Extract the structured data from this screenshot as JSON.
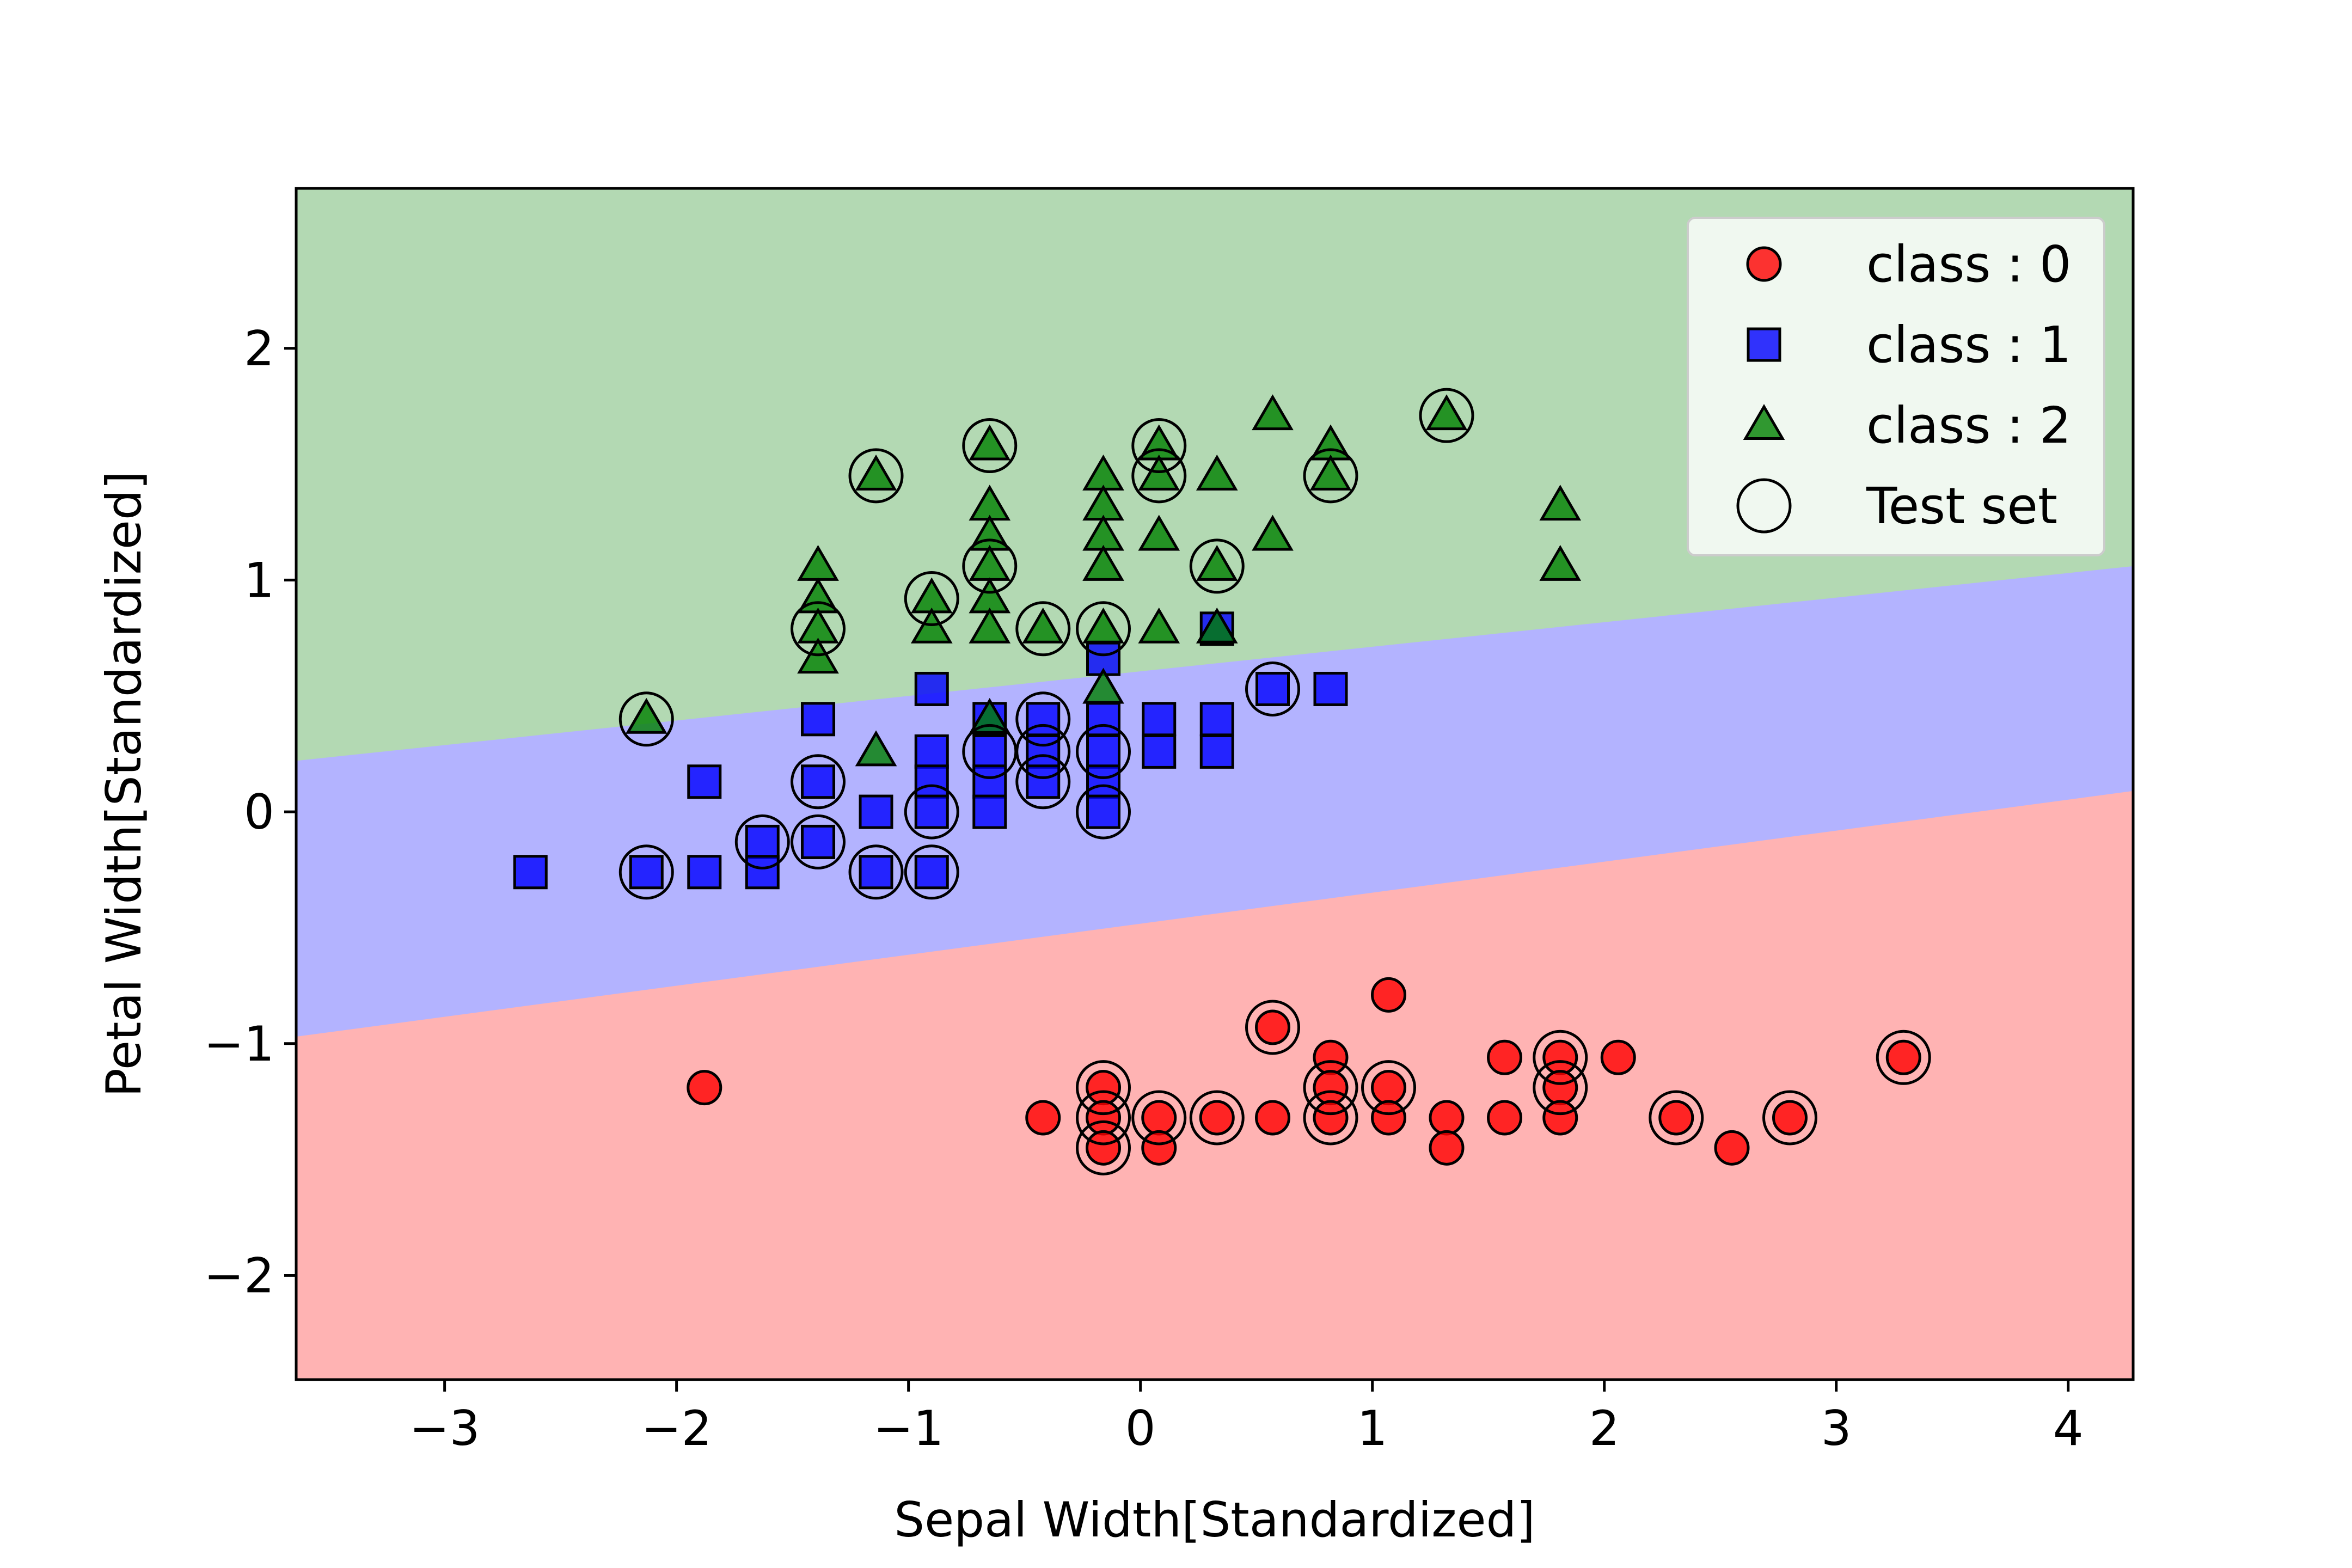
{
  "chart_data": {
    "type": "scatter",
    "title": "",
    "xlabel": "Sepal Width[Standardized]",
    "ylabel": "Petal Width[Standardized]",
    "xlim": [
      -3.64,
      4.28
    ],
    "ylim": [
      -2.45,
      2.69
    ],
    "xticks": [
      -3,
      -2,
      -1,
      0,
      1,
      2,
      3,
      4
    ],
    "xtick_labels": [
      "−3",
      "−2",
      "−1",
      "0",
      "1",
      "2",
      "3",
      "4"
    ],
    "yticks": [
      -2,
      -1,
      0,
      1,
      2
    ],
    "ytick_labels": [
      "−2",
      "−1",
      "0",
      "1",
      "2"
    ],
    "grid": false,
    "legend_position": "top-right",
    "decision_regions": [
      {
        "class": "2",
        "color": "#b3d9b3",
        "lower_boundary": {
          "x": [
            -3.64,
            4.28
          ],
          "y": [
            0.22,
            1.06
          ]
        }
      },
      {
        "class": "1",
        "color": "#b3b3ff",
        "lower_boundary": {
          "x": [
            -3.64,
            4.28
          ],
          "y": [
            -0.97,
            0.09
          ]
        }
      },
      {
        "class": "0",
        "color": "#ffb3b3"
      }
    ],
    "series": [
      {
        "name": "class : 0",
        "marker": "circle",
        "color": "#ff0000",
        "points": [
          [
            -1.88,
            -1.19
          ],
          [
            -0.42,
            -1.32
          ],
          [
            -0.16,
            -1.19
          ],
          [
            -0.16,
            -1.32
          ],
          [
            -0.16,
            -1.45
          ],
          [
            0.08,
            -1.32
          ],
          [
            0.08,
            -1.45
          ],
          [
            0.33,
            -1.32
          ],
          [
            0.57,
            -1.32
          ],
          [
            0.57,
            -0.93
          ],
          [
            0.82,
            -1.06
          ],
          [
            0.82,
            -1.19
          ],
          [
            0.82,
            -1.32
          ],
          [
            1.07,
            -0.79
          ],
          [
            1.07,
            -1.19
          ],
          [
            1.07,
            -1.32
          ],
          [
            1.32,
            -1.32
          ],
          [
            1.32,
            -1.45
          ],
          [
            1.57,
            -1.06
          ],
          [
            1.57,
            -1.32
          ],
          [
            1.81,
            -1.06
          ],
          [
            1.81,
            -1.19
          ],
          [
            1.81,
            -1.32
          ],
          [
            2.06,
            -1.06
          ],
          [
            2.31,
            -1.32
          ],
          [
            2.55,
            -1.45
          ],
          [
            2.8,
            -1.32
          ],
          [
            3.29,
            -1.06
          ]
        ]
      },
      {
        "name": "class : 1",
        "marker": "square",
        "color": "#0000ff",
        "points": [
          [
            -2.63,
            -0.26
          ],
          [
            -2.13,
            -0.26
          ],
          [
            -1.88,
            0.13
          ],
          [
            -1.88,
            -0.26
          ],
          [
            -1.63,
            -0.13
          ],
          [
            -1.63,
            -0.26
          ],
          [
            -1.39,
            0.4
          ],
          [
            -1.39,
            0.13
          ],
          [
            -1.39,
            -0.13
          ],
          [
            -1.14,
            0.0
          ],
          [
            -1.14,
            -0.26
          ],
          [
            -0.9,
            0.53
          ],
          [
            -0.9,
            0.26
          ],
          [
            -0.9,
            0.13
          ],
          [
            -0.9,
            0.0
          ],
          [
            -0.9,
            -0.26
          ],
          [
            -0.65,
            0.4
          ],
          [
            -0.65,
            0.26
          ],
          [
            -0.65,
            0.13
          ],
          [
            -0.65,
            0.0
          ],
          [
            -0.42,
            0.4
          ],
          [
            -0.42,
            0.26
          ],
          [
            -0.42,
            0.13
          ],
          [
            -0.16,
            0.66
          ],
          [
            -0.16,
            0.4
          ],
          [
            -0.16,
            0.26
          ],
          [
            -0.16,
            0.13
          ],
          [
            -0.16,
            0.0
          ],
          [
            0.08,
            0.4
          ],
          [
            0.08,
            0.26
          ],
          [
            0.33,
            0.79
          ],
          [
            0.33,
            0.4
          ],
          [
            0.33,
            0.26
          ],
          [
            0.57,
            0.53
          ],
          [
            0.82,
            0.53
          ]
        ]
      },
      {
        "name": "class : 2",
        "marker": "triangle",
        "color": "#008000",
        "points": [
          [
            -2.13,
            0.4
          ],
          [
            -1.39,
            1.06
          ],
          [
            -1.39,
            0.92
          ],
          [
            -1.39,
            0.79
          ],
          [
            -1.39,
            0.66
          ],
          [
            -1.14,
            1.45
          ],
          [
            -1.14,
            0.26
          ],
          [
            -0.9,
            0.92
          ],
          [
            -0.9,
            0.79
          ],
          [
            -0.65,
            1.58
          ],
          [
            -0.65,
            1.32
          ],
          [
            -0.65,
            1.19
          ],
          [
            -0.65,
            1.06
          ],
          [
            -0.65,
            0.92
          ],
          [
            -0.65,
            0.79
          ],
          [
            -0.65,
            0.4
          ],
          [
            -0.42,
            0.79
          ],
          [
            -0.16,
            1.45
          ],
          [
            -0.16,
            1.32
          ],
          [
            -0.16,
            1.19
          ],
          [
            -0.16,
            1.06
          ],
          [
            -0.16,
            0.79
          ],
          [
            -0.16,
            0.53
          ],
          [
            0.08,
            1.58
          ],
          [
            0.08,
            1.45
          ],
          [
            0.08,
            1.19
          ],
          [
            0.08,
            0.79
          ],
          [
            0.33,
            1.45
          ],
          [
            0.33,
            1.06
          ],
          [
            0.33,
            0.79
          ],
          [
            0.57,
            1.71
          ],
          [
            0.57,
            1.19
          ],
          [
            0.82,
            1.58
          ],
          [
            0.82,
            1.45
          ],
          [
            1.32,
            1.71
          ],
          [
            1.81,
            1.32
          ],
          [
            1.81,
            1.06
          ]
        ]
      },
      {
        "name": "Test set",
        "marker": "open-circle",
        "color": "#000000",
        "points": [
          [
            -2.13,
            0.4
          ],
          [
            -1.39,
            0.79
          ],
          [
            -1.14,
            1.45
          ],
          [
            -0.9,
            0.92
          ],
          [
            -0.65,
            1.58
          ],
          [
            -0.65,
            1.06
          ],
          [
            -0.42,
            0.79
          ],
          [
            -0.16,
            0.79
          ],
          [
            0.08,
            1.58
          ],
          [
            0.08,
            1.45
          ],
          [
            0.33,
            1.06
          ],
          [
            0.82,
            1.45
          ],
          [
            1.32,
            1.71
          ],
          [
            -2.13,
            -0.26
          ],
          [
            -1.63,
            -0.13
          ],
          [
            -1.39,
            0.13
          ],
          [
            -1.39,
            -0.13
          ],
          [
            -1.14,
            -0.26
          ],
          [
            -0.9,
            0.0
          ],
          [
            -0.9,
            -0.26
          ],
          [
            -0.65,
            0.26
          ],
          [
            -0.42,
            0.4
          ],
          [
            -0.42,
            0.26
          ],
          [
            -0.42,
            0.13
          ],
          [
            -0.16,
            0.26
          ],
          [
            -0.16,
            0.0
          ],
          [
            0.57,
            0.53
          ],
          [
            -0.16,
            -1.19
          ],
          [
            -0.16,
            -1.32
          ],
          [
            -0.16,
            -1.45
          ],
          [
            0.08,
            -1.32
          ],
          [
            0.33,
            -1.32
          ],
          [
            0.57,
            -0.93
          ],
          [
            0.82,
            -1.19
          ],
          [
            0.82,
            -1.32
          ],
          [
            1.07,
            -1.19
          ],
          [
            1.81,
            -1.06
          ],
          [
            1.81,
            -1.19
          ],
          [
            2.31,
            -1.32
          ],
          [
            2.8,
            -1.32
          ],
          [
            3.29,
            -1.06
          ]
        ]
      }
    ]
  }
}
